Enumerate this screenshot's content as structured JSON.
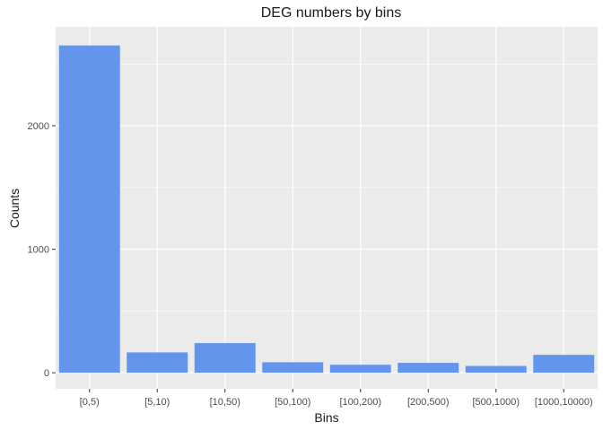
{
  "chart_data": {
    "type": "bar",
    "title": "DEG numbers by bins",
    "xlabel": "Bins",
    "ylabel": "Counts",
    "categories": [
      "[0,5)",
      "[5,10)",
      "[10,50)",
      "[50,100)",
      "[100,200)",
      "[200,500)",
      "[500,1000)",
      "[1000,10000)"
    ],
    "values": [
      2650,
      165,
      240,
      85,
      65,
      80,
      55,
      145
    ],
    "yticks": [
      0,
      1000,
      2000
    ],
    "ylim": [
      -130,
      2800
    ],
    "grid": true,
    "colors": {
      "bar": "#6495ED",
      "panel": "#EBEBEB",
      "grid_major": "#FFFFFF",
      "tick": "#333333"
    }
  }
}
